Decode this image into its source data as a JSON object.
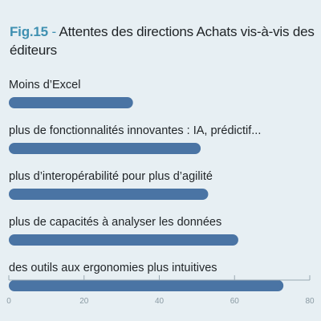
{
  "figure": {
    "label": "Fig.15",
    "separator": " - ",
    "title": "Attentes des directions Achats vis-à-vis des éditeurs"
  },
  "colors": {
    "background": "#e7eff3",
    "bar": "#4a74a4",
    "accent": "#3f90b1",
    "axis": "#9aa9b2",
    "text": "#1f2326",
    "tick": "#8a9aa3"
  },
  "chart_data": {
    "type": "bar",
    "orientation": "horizontal",
    "title": "Attentes des directions Achats vis-à-vis des éditeurs",
    "categories": [
      "Moins d’Excel",
      "plus de fonctionnalités innovantes : IA, prédictif...",
      "plus d’interopérabilité pour plus d’agilité",
      "plus de capacités à analyser les données",
      "des outils aux ergonomies plus intuitives"
    ],
    "values": [
      33,
      51,
      53,
      61,
      73
    ],
    "xlim": [
      0,
      80
    ],
    "xticks": [
      0,
      20,
      40,
      60,
      80
    ],
    "xlabel": "",
    "ylabel": "",
    "grid": false
  }
}
